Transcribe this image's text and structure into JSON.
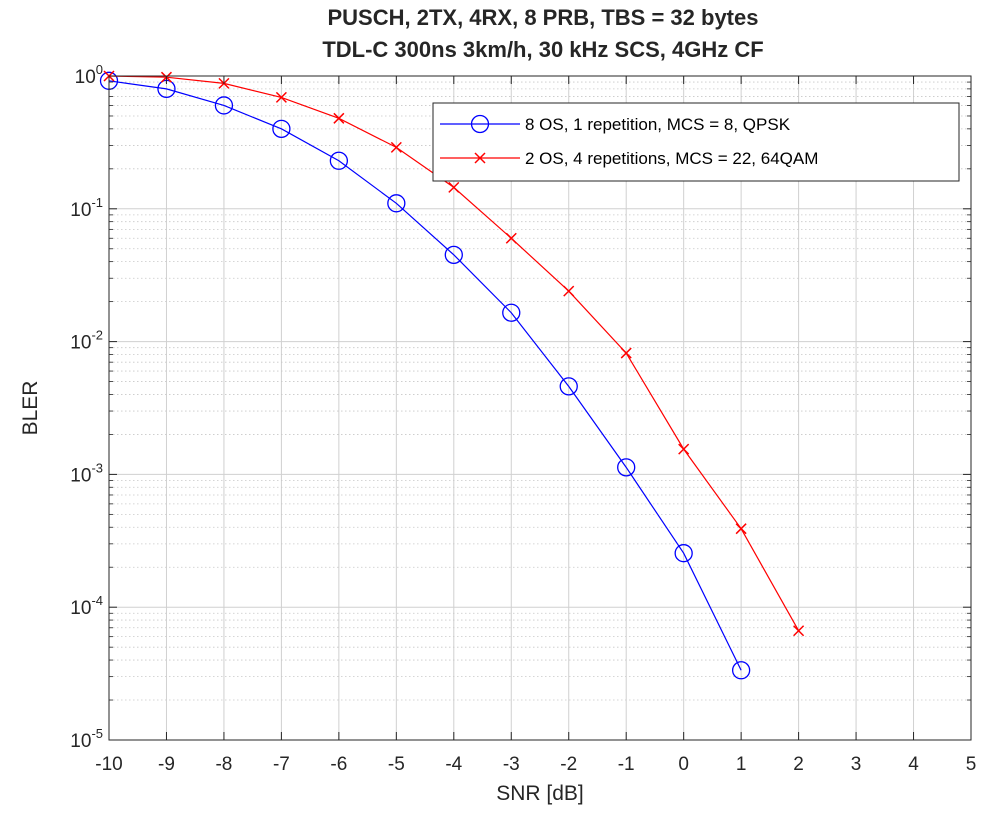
{
  "chart_data": {
    "type": "line",
    "title": [
      "PUSCH, 2TX, 4RX, 8 PRB, TBS = 32 bytes",
      "TDL-C 300ns 3km/h, 30 kHz SCS, 4GHz CF"
    ],
    "xlabel": "SNR [dB]",
    "ylabel": "BLER",
    "xlim": [
      -10,
      5
    ],
    "ylim": [
      1e-05,
      1
    ],
    "yscale": "log",
    "grid": true,
    "minor_grid": true,
    "legend_position": "top-right",
    "x_ticks": [
      "-10",
      "-9",
      "-8",
      "-7",
      "-6",
      "-5",
      "-4",
      "-3",
      "-2",
      "-1",
      "0",
      "1",
      "2",
      "3",
      "4",
      "5"
    ],
    "y_ticks": [
      {
        "base": "10",
        "exp": "-5"
      },
      {
        "base": "10",
        "exp": "-4"
      },
      {
        "base": "10",
        "exp": "-3"
      },
      {
        "base": "10",
        "exp": "-2"
      },
      {
        "base": "10",
        "exp": "-1"
      },
      {
        "base": "10",
        "exp": "0"
      }
    ],
    "series": [
      {
        "name": "8 OS, 1 repetition, MCS = 8, QPSK",
        "color": "#0000ff",
        "marker": "circle",
        "x": [
          -10,
          -9,
          -8,
          -7,
          -6,
          -5,
          -4,
          -3,
          -2,
          -1,
          0,
          1
        ],
        "y": [
          0.92,
          0.8,
          0.6,
          0.4,
          0.23,
          0.11,
          0.045,
          0.0165,
          0.0046,
          0.00113,
          0.000255,
          3.35e-05
        ]
      },
      {
        "name": "2 OS, 4 repetitions, MCS = 22, 64QAM",
        "color": "#ff0000",
        "marker": "x",
        "x": [
          -10,
          -9,
          -8,
          -7,
          -6,
          -5,
          -4,
          -3,
          -2,
          -1,
          0,
          1,
          2
        ],
        "y": [
          1.0,
          0.98,
          0.88,
          0.69,
          0.48,
          0.29,
          0.145,
          0.06,
          0.024,
          0.0082,
          0.00155,
          0.00039,
          6.65e-05
        ]
      }
    ]
  }
}
